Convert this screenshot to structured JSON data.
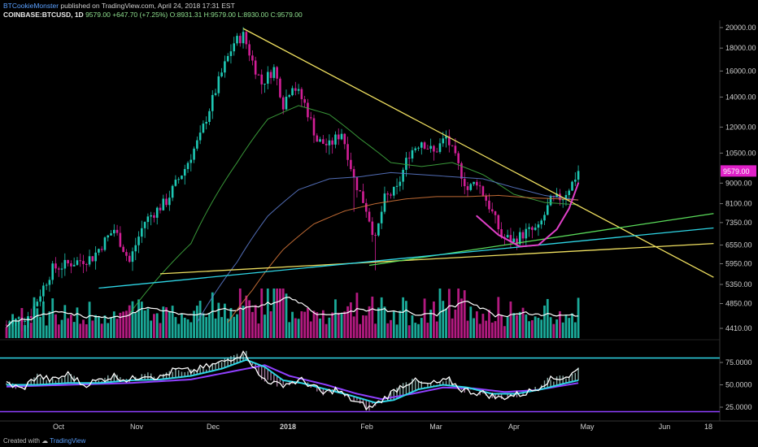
{
  "header": {
    "author": "BTCookieMonster",
    "published": "published on TradingView.com, April 24, 2018 17:31 EST",
    "symbol": "COINBASE:BTCUSD, 1D",
    "last": "9579.00",
    "change": "+647.70 (+7.25%)",
    "ohlc": "O:8931.31 H:9579.00 L:8930.00 C:9579.00"
  },
  "footer": {
    "created_with": "Created with",
    "brand": "TradingView"
  },
  "colors": {
    "up": "#1ec8b4",
    "down": "#d21e96",
    "bg": "#000000",
    "ma_fast": "#3fa83f",
    "ma_mid": "#5a78c8",
    "ma_slow": "#d4763a",
    "trend_yellow": "#f0e060",
    "trend_green": "#5adc5a",
    "trend_cyan": "#2ed6e6",
    "cup": "#e040c8",
    "vol_ma": "#ffffff",
    "rsi": "#ffffff",
    "rsi_ma": "#2ed6e6",
    "rsi_ma2": "#9040ff",
    "band": "#2ed6e6",
    "band_low": "#9040ff",
    "price_tag": "#e020c8"
  },
  "price_tag": "9579.00",
  "chart_data": [
    {
      "type": "candlestick",
      "title": "COINBASE:BTCUSD, 1D",
      "scale": "log",
      "x_ticks": [
        "Oct",
        "Nov",
        "Dec",
        "2018",
        "Feb",
        "Mar",
        "Apr",
        "May",
        "Jun",
        "18"
      ],
      "y_ticks": [
        4410,
        4850,
        5350,
        5950,
        6550,
        7350,
        8100,
        9000,
        10500,
        12000,
        14000,
        16000,
        18000,
        20000
      ],
      "ylim": [
        4200,
        20500
      ],
      "anchors_close": [
        [
          0,
          4350
        ],
        [
          8,
          4600
        ],
        [
          15,
          5800
        ],
        [
          22,
          6000
        ],
        [
          28,
          6150
        ],
        [
          35,
          7100
        ],
        [
          40,
          6000
        ],
        [
          45,
          7400
        ],
        [
          52,
          8200
        ],
        [
          58,
          9700
        ],
        [
          63,
          11400
        ],
        [
          67,
          13800
        ],
        [
          71,
          16500
        ],
        [
          74,
          18500
        ],
        [
          77,
          19200
        ],
        [
          80,
          16800
        ],
        [
          83,
          15000
        ],
        [
          87,
          16200
        ],
        [
          90,
          13500
        ],
        [
          93,
          15000
        ],
        [
          97,
          13500
        ],
        [
          101,
          11200
        ],
        [
          105,
          10900
        ],
        [
          109,
          11700
        ],
        [
          113,
          9200
        ],
        [
          117,
          7900
        ],
        [
          120,
          6700
        ],
        [
          123,
          8300
        ],
        [
          127,
          8700
        ],
        [
          131,
          10500
        ],
        [
          135,
          11200
        ],
        [
          139,
          10500
        ],
        [
          143,
          11400
        ],
        [
          147,
          9800
        ],
        [
          150,
          8700
        ],
        [
          153,
          9100
        ],
        [
          157,
          8000
        ],
        [
          161,
          6850
        ],
        [
          165,
          6700
        ],
        [
          169,
          7000
        ],
        [
          173,
          7100
        ],
        [
          177,
          8200
        ],
        [
          181,
          8400
        ],
        [
          184,
          9000
        ],
        [
          186,
          9579
        ]
      ],
      "moving_averages": [
        {
          "name": "MA fast",
          "anchors": [
            [
              40,
              4600
            ],
            [
              60,
              6600
            ],
            [
              75,
              10000
            ],
            [
              85,
              12500
            ],
            [
              95,
              13400
            ],
            [
              105,
              12800
            ],
            [
              115,
              11300
            ],
            [
              125,
              10000
            ],
            [
              135,
              9800
            ],
            [
              145,
              10000
            ],
            [
              155,
              9400
            ],
            [
              165,
              8500
            ],
            [
              175,
              8150
            ],
            [
              186,
              8050
            ]
          ]
        },
        {
          "name": "MA mid",
          "anchors": [
            [
              62,
              4400
            ],
            [
              75,
              6000
            ],
            [
              85,
              7600
            ],
            [
              95,
              8700
            ],
            [
              105,
              9200
            ],
            [
              115,
              9300
            ],
            [
              125,
              9500
            ],
            [
              135,
              9400
            ],
            [
              145,
              9300
            ],
            [
              155,
              9200
            ],
            [
              165,
              8800
            ],
            [
              175,
              8450
            ],
            [
              186,
              8250
            ]
          ]
        },
        {
          "name": "MA slow",
          "anchors": [
            [
              72,
              4400
            ],
            [
              80,
              5200
            ],
            [
              90,
              6400
            ],
            [
              100,
              7300
            ],
            [
              110,
              7800
            ],
            [
              120,
              8100
            ],
            [
              130,
              8300
            ],
            [
              140,
              8400
            ],
            [
              150,
              8400
            ],
            [
              160,
              8450
            ],
            [
              170,
              8350
            ],
            [
              180,
              8300
            ],
            [
              186,
              8250
            ]
          ]
        }
      ],
      "trendlines": [
        {
          "name": "resistance",
          "color": "trend_yellow",
          "points": [
            [
              77,
              19900
            ],
            [
              230,
              5550
            ]
          ]
        },
        {
          "name": "support-yellow",
          "color": "trend_yellow",
          "points": [
            [
              50,
              5650
            ],
            [
              230,
              6600
            ]
          ]
        },
        {
          "name": "support-green",
          "color": "trend_green",
          "points": [
            [
              118,
              5900
            ],
            [
              230,
              7700
            ]
          ]
        },
        {
          "name": "support-cyan",
          "color": "trend_cyan",
          "points": [
            [
              30,
              5250
            ],
            [
              230,
              7150
            ]
          ]
        }
      ],
      "cup": {
        "name": "cup-pattern",
        "points": [
          [
            153,
            7600
          ],
          [
            160,
            6900
          ],
          [
            167,
            6500
          ],
          [
            173,
            6550
          ],
          [
            179,
            7100
          ],
          [
            183,
            7900
          ],
          [
            186,
            9000
          ]
        ]
      }
    },
    {
      "type": "bar",
      "title": "Volume",
      "note": "volume histogram coloured by candle direction with a moving-average line"
    },
    {
      "type": "line",
      "title": "RSI / Stoch",
      "y_ticks": [
        25,
        50,
        75
      ],
      "ylim": [
        15,
        95
      ],
      "bands": [
        80,
        20
      ],
      "rsi_anchors": [
        [
          0,
          52
        ],
        [
          5,
          45
        ],
        [
          10,
          60
        ],
        [
          15,
          55
        ],
        [
          20,
          62
        ],
        [
          25,
          50
        ],
        [
          30,
          55
        ],
        [
          35,
          60
        ],
        [
          40,
          55
        ],
        [
          45,
          62
        ],
        [
          50,
          58
        ],
        [
          55,
          67
        ],
        [
          60,
          65
        ],
        [
          65,
          70
        ],
        [
          70,
          75
        ],
        [
          75,
          83
        ],
        [
          78,
          85
        ],
        [
          82,
          60
        ],
        [
          85,
          55
        ],
        [
          88,
          50
        ],
        [
          92,
          52
        ],
        [
          96,
          55
        ],
        [
          100,
          48
        ],
        [
          103,
          40
        ],
        [
          107,
          45
        ],
        [
          110,
          38
        ],
        [
          114,
          30
        ],
        [
          118,
          24
        ],
        [
          121,
          30
        ],
        [
          124,
          38
        ],
        [
          128,
          48
        ],
        [
          132,
          55
        ],
        [
          136,
          50
        ],
        [
          140,
          52
        ],
        [
          144,
          55
        ],
        [
          148,
          45
        ],
        [
          152,
          42
        ],
        [
          156,
          40
        ],
        [
          160,
          35
        ],
        [
          164,
          38
        ],
        [
          168,
          40
        ],
        [
          172,
          45
        ],
        [
          176,
          55
        ],
        [
          180,
          58
        ],
        [
          183,
          60
        ],
        [
          186,
          67
        ]
      ],
      "rsi_ma_anchors": [
        [
          0,
          50
        ],
        [
          10,
          50
        ],
        [
          20,
          52
        ],
        [
          30,
          52
        ],
        [
          40,
          55
        ],
        [
          50,
          56
        ],
        [
          60,
          60
        ],
        [
          70,
          68
        ],
        [
          78,
          78
        ],
        [
          84,
          70
        ],
        [
          90,
          55
        ],
        [
          96,
          52
        ],
        [
          104,
          45
        ],
        [
          112,
          38
        ],
        [
          120,
          30
        ],
        [
          126,
          33
        ],
        [
          134,
          45
        ],
        [
          142,
          50
        ],
        [
          150,
          47
        ],
        [
          158,
          40
        ],
        [
          166,
          40
        ],
        [
          174,
          45
        ],
        [
          182,
          52
        ],
        [
          186,
          55
        ]
      ],
      "rsi_ma2_anchors": [
        [
          0,
          48
        ],
        [
          20,
          50
        ],
        [
          40,
          52
        ],
        [
          60,
          56
        ],
        [
          75,
          66
        ],
        [
          84,
          72
        ],
        [
          92,
          60
        ],
        [
          104,
          50
        ],
        [
          114,
          40
        ],
        [
          122,
          34
        ],
        [
          132,
          40
        ],
        [
          142,
          47
        ],
        [
          152,
          46
        ],
        [
          162,
          42
        ],
        [
          172,
          44
        ],
        [
          186,
          52
        ]
      ]
    }
  ]
}
